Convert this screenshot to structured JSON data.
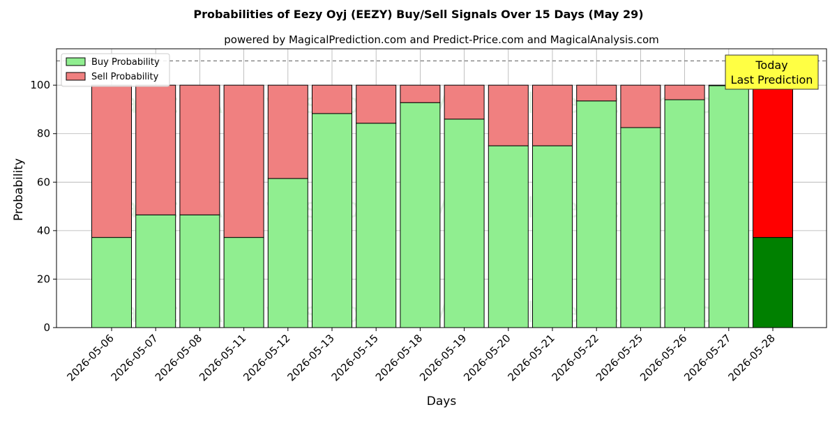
{
  "chart_data": {
    "type": "bar",
    "stacked": true,
    "title": "Probabilities of Eezy Oyj (EEZY) Buy/Sell Signals Over 15 Days (May 29)",
    "subtitle": "powered by MagicalPrediction.com and Predict-Price.com and MagicalAnalysis.com",
    "xlabel": "Days",
    "ylabel": "Probability",
    "ylim": [
      0,
      115
    ],
    "yticks": [
      0,
      20,
      40,
      60,
      80,
      100
    ],
    "grid": true,
    "legend_position": "top-left",
    "reference_line": 110,
    "categories": [
      "2026-05-06",
      "2026-05-07",
      "2026-05-08",
      "2026-05-11",
      "2026-05-12",
      "2026-05-13",
      "2026-05-15",
      "2026-05-18",
      "2026-05-19",
      "2026-05-20",
      "2026-05-21",
      "2026-05-22",
      "2026-05-25",
      "2026-05-26",
      "2026-05-27",
      "2026-05-28"
    ],
    "series": [
      {
        "name": "Buy Probability",
        "color": "#90ee90",
        "values": [
          37.2,
          46.5,
          46.5,
          37.2,
          61.5,
          88.3,
          84.3,
          92.8,
          86.0,
          75.0,
          75.0,
          93.5,
          82.5,
          94.0,
          99.8,
          37.2
        ]
      },
      {
        "name": "Sell Probability",
        "color": "#f08080",
        "values": [
          62.8,
          53.5,
          53.5,
          62.8,
          38.5,
          11.7,
          15.7,
          7.2,
          14.0,
          25.0,
          25.0,
          6.5,
          17.5,
          6.0,
          0.2,
          62.8
        ]
      }
    ],
    "highlight": {
      "index": 15,
      "buy_color": "#008000",
      "sell_color": "#ff0000"
    },
    "annotation": {
      "lines": [
        "Today",
        "Last Prediction"
      ],
      "background": "#ffff44"
    },
    "watermarks": [
      "MagicalAnalysis.com",
      "MagicalPrediction.com"
    ]
  }
}
